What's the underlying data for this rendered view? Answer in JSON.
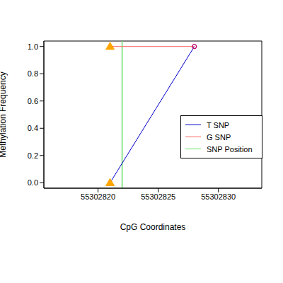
{
  "chart_data": {
    "type": "line",
    "x_label": "CpG Coordinates",
    "y_label": "Methylation Frequency",
    "x": [
      55302821,
      55302828
    ],
    "series": [
      {
        "name": "T SNP",
        "color": "#0000cd",
        "values": [
          0,
          1
        ]
      },
      {
        "name": "G SNP",
        "color": "#ff6060",
        "values": [
          1,
          1
        ]
      }
    ],
    "vlines": [
      {
        "name": "SNP Position",
        "x": 55302822,
        "color": "#66dd66"
      }
    ],
    "markers": [
      {
        "x": 55302821,
        "marker": "triangle",
        "color": "#ffa500"
      },
      {
        "x": 55302828,
        "marker": "circle",
        "color": "#c0006a"
      }
    ],
    "xlim": [
      55302815.5,
      55302833.6
    ],
    "ylim": [
      -0.04,
      1.04
    ],
    "xticks": [
      55302820,
      55302825,
      55302830
    ],
    "yticks": [
      {
        "value": 0,
        "label": "0.0"
      },
      {
        "value": 0.2,
        "label": "0.2"
      },
      {
        "value": 0.4,
        "label": "0.4"
      },
      {
        "value": 0.6,
        "label": "0.6"
      },
      {
        "value": 0.8,
        "label": "0.8"
      },
      {
        "value": 1,
        "label": "1.0"
      }
    ],
    "legend": "right"
  }
}
